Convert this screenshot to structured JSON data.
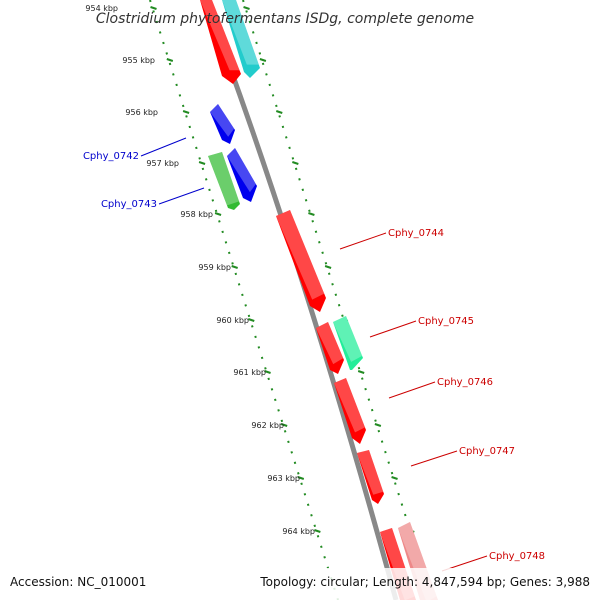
{
  "title": "Clostridium phytofermentans ISDg, complete genome",
  "footer": {
    "accession": "Accession: NC_010001",
    "summary": "Topology: circular; Length: 4,847,594 bp; Genes: 3,988"
  },
  "colors": {
    "backbone": "#888888",
    "ticks": "#228B22",
    "forward_label": "#0000cc",
    "reverse_label": "#cc0000"
  },
  "scale": {
    "unit": "kbp",
    "labels": [
      "954 kbp",
      "955 kbp",
      "956 kbp",
      "957 kbp",
      "958 kbp",
      "959 kbp",
      "960 kbp",
      "961 kbp",
      "962 kbp",
      "963 kbp",
      "964 kbp"
    ]
  },
  "gene_labels": [
    {
      "text": "Cphy_0742",
      "strand": "forward"
    },
    {
      "text": "Cphy_0743",
      "strand": "forward"
    },
    {
      "text": "Cphy_0744",
      "strand": "reverse"
    },
    {
      "text": "Cphy_0745",
      "strand": "reverse"
    },
    {
      "text": "Cphy_0746",
      "strand": "reverse"
    },
    {
      "text": "Cphy_0747",
      "strand": "reverse"
    },
    {
      "text": "Cphy_0748",
      "strand": "reverse"
    }
  ],
  "features": [
    {
      "track": "reverse-cds",
      "color": "#ff0000"
    },
    {
      "track": "reverse-orf",
      "color": "#22cccc"
    },
    {
      "track": "forward-cds",
      "color": "#0000ee"
    },
    {
      "track": "forward-orf",
      "color": "#33bb33"
    },
    {
      "track": "forward-cds",
      "color": "#0000ee"
    },
    {
      "track": "reverse-cds",
      "color": "#ff0000"
    },
    {
      "track": "reverse-cds",
      "color": "#ff0000"
    },
    {
      "track": "reverse-orf",
      "color": "#22ee99"
    },
    {
      "track": "reverse-cds",
      "color": "#ff0000"
    },
    {
      "track": "reverse-cds",
      "color": "#ff0000"
    },
    {
      "track": "reverse-cds",
      "color": "#ff0000"
    },
    {
      "track": "reverse-orf",
      "color": "#ee8888"
    }
  ]
}
